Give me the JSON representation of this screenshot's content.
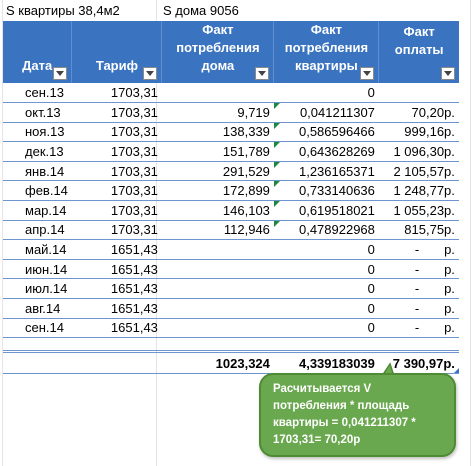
{
  "header_line": {
    "area_apartment": "S квартиры 38,4м2",
    "area_house": "S дома 9056"
  },
  "columns": [
    {
      "line1": "",
      "line2": "",
      "line3": "Дата"
    },
    {
      "line1": "",
      "line2": "",
      "line3": "Тариф"
    },
    {
      "line1": "Факт",
      "line2": "потребления",
      "line3": "дома"
    },
    {
      "line1": "Факт",
      "line2": "потребления",
      "line3": "квартиры"
    },
    {
      "line1": "Факт",
      "line2": "оплаты",
      "line3": ""
    }
  ],
  "rows": [
    {
      "date": "сен.13",
      "tariff": "1703,31",
      "house": "",
      "apt": "0",
      "pay": "",
      "pay_unit": ""
    },
    {
      "date": "окт.13",
      "tariff": "1703,31",
      "house": "9,719",
      "apt": "0,041211307",
      "pay": "70,20р.",
      "pay_unit": ""
    },
    {
      "date": "ноя.13",
      "tariff": "1703,31",
      "house": "138,339",
      "apt": "0,586596466",
      "pay": "999,16р.",
      "pay_unit": ""
    },
    {
      "date": "дек.13",
      "tariff": "1703,31",
      "house": "151,789",
      "apt": "0,643628269",
      "pay": "1 096,30р.",
      "pay_unit": ""
    },
    {
      "date": "янв.14",
      "tariff": "1703,31",
      "house": "291,529",
      "apt": "1,236165371",
      "pay": "2 105,57р.",
      "pay_unit": ""
    },
    {
      "date": "фев.14",
      "tariff": "1703,31",
      "house": "172,899",
      "apt": "0,733140636",
      "pay": "1 248,77р.",
      "pay_unit": ""
    },
    {
      "date": "мар.14",
      "tariff": "1703,31",
      "house": "146,103",
      "apt": "0,619518021",
      "pay": "1 055,23р.",
      "pay_unit": ""
    },
    {
      "date": "апр.14",
      "tariff": "1703,31",
      "house": "112,946",
      "apt": "0,478922968",
      "pay": "815,75р.",
      "pay_unit": ""
    },
    {
      "date": "май.14",
      "tariff": "1651,43",
      "house": "",
      "apt": "0",
      "pay": "-",
      "pay_unit": "р."
    },
    {
      "date": "июн.14",
      "tariff": "1651,43",
      "house": "",
      "apt": "0",
      "pay": "-",
      "pay_unit": "р."
    },
    {
      "date": "июл.14",
      "tariff": "1651,43",
      "house": "",
      "apt": "0",
      "pay": "-",
      "pay_unit": "р."
    },
    {
      "date": "авг.14",
      "tariff": "1651,43",
      "house": "",
      "apt": "0",
      "pay": "-",
      "pay_unit": "р."
    },
    {
      "date": "сен.14",
      "tariff": "1651,43",
      "house": "",
      "apt": "0",
      "pay": "-",
      "pay_unit": "р."
    }
  ],
  "totals": {
    "house": "1023,324",
    "apt": "4,339183039",
    "pay": "7 390,97р."
  },
  "callout": {
    "text": "Расчитывается V потребления  * площадь квартиры = 0,041211307 * 1703,31= 70,20р"
  },
  "colors": {
    "header_bg": "#3a73c0",
    "row_border": "#6e95cf",
    "callout_bg": "#6aa84f",
    "comment_marker": "#1a8a3a"
  },
  "icons": {
    "filter": "dropdown-filter-icon",
    "comment": "comment-indicator-icon"
  }
}
